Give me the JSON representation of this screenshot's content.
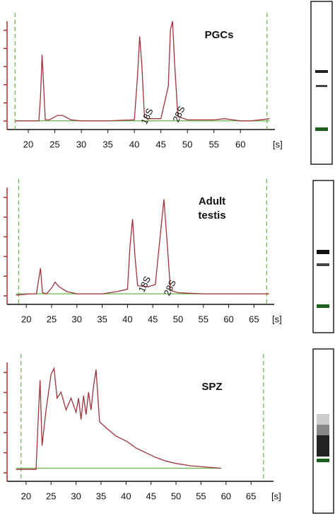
{
  "chart_data": [
    {
      "type": "line",
      "title": "PGCs",
      "x_label": "[s]",
      "xlim": [
        16,
        66.5
      ],
      "ylim": [
        0,
        100
      ],
      "xticks": [
        20,
        25,
        30,
        35,
        40,
        45,
        50,
        55,
        60
      ],
      "baseline": 8,
      "markers": [
        17.5,
        65
      ],
      "marker_color": "#6ab04c",
      "x": [
        17.5,
        20,
        22,
        22.3,
        22.6,
        22.9,
        23.2,
        24,
        25.5,
        26.5,
        28,
        30,
        35,
        40,
        40.6,
        41,
        41.4,
        41.9,
        42.5,
        45,
        46.4,
        46.8,
        47.2,
        47.6,
        48.2,
        50,
        55,
        57,
        60,
        62,
        65.5
      ],
      "series": [
        {
          "color": "#a0323c",
          "values": [
            8,
            8,
            8,
            30,
            69,
            40,
            9,
            9,
            13,
            13,
            9,
            8,
            8,
            9,
            50,
            86,
            60,
            12,
            10,
            10,
            40,
            92,
            100,
            60,
            12,
            9,
            9,
            10,
            8,
            8,
            10
          ]
        }
      ],
      "annotations": [
        {
          "text": "18S",
          "x": 42.5,
          "y": 12,
          "color": "#d24fd2"
        },
        {
          "text": "28S",
          "x": 48.5,
          "y": 14,
          "color": "#2e7d5b"
        }
      ]
    },
    {
      "type": "line",
      "title": "Adult testis",
      "x_label": "[s]",
      "xlim": [
        16.2,
        69
      ],
      "ylim": [
        0,
        100
      ],
      "xticks": [
        20,
        25,
        30,
        35,
        40,
        45,
        50,
        55,
        60,
        65
      ],
      "baseline": 9,
      "markers": [
        18.5,
        67.5
      ],
      "marker_color": "#6ab04c",
      "x": [
        18,
        21,
        22,
        22.4,
        22.8,
        23.2,
        24,
        25,
        25.7,
        26.5,
        28,
        30,
        35,
        38,
        40,
        40.5,
        41,
        41.5,
        42,
        44,
        45.5,
        46.5,
        47.2,
        47.8,
        48.5,
        50,
        55,
        60,
        65,
        68
      ],
      "series": [
        {
          "color": "#a0323c",
          "values": [
            8,
            9,
            9,
            20,
            31,
            10,
            9,
            14,
            19,
            15,
            11,
            9,
            9,
            11,
            13,
            50,
            73,
            40,
            16,
            15,
            17,
            60,
            90,
            55,
            12,
            10,
            9,
            9,
            9,
            9
          ]
        }
      ],
      "annotations": [
        {
          "text": "18S",
          "x": 43.5,
          "y": 17,
          "color": "#d24fd2"
        },
        {
          "text": "28S",
          "x": 48.5,
          "y": 14,
          "color": "#2e7d5b"
        }
      ]
    },
    {
      "type": "line",
      "title": "SPZ",
      "x_label": "[s]",
      "xlim": [
        16.2,
        69.5
      ],
      "ylim": [
        0,
        100
      ],
      "xticks": [
        20,
        25,
        30,
        35,
        40,
        45,
        50,
        55,
        60,
        65
      ],
      "baseline": 11,
      "markers": [
        19,
        67.5
      ],
      "marker_color": "#6ab04c",
      "x": [
        18,
        22,
        22.4,
        22.8,
        23.2,
        24,
        25,
        25.6,
        26.2,
        27,
        28,
        29,
        30,
        30.5,
        31,
        31.5,
        32,
        32.5,
        33,
        33.5,
        34,
        34.7,
        36,
        38,
        40,
        42,
        44,
        46,
        48,
        50,
        53,
        56,
        59
      ],
      "series": [
        {
          "color": "#a0323c",
          "values": [
            10,
            10,
            50,
            85,
            30,
            60,
            90,
            95,
            70,
            75,
            60,
            70,
            58,
            70,
            52,
            72,
            56,
            75,
            60,
            80,
            94,
            50,
            45,
            38,
            34,
            28,
            24,
            20,
            17,
            15,
            13,
            12,
            11
          ]
        }
      ]
    }
  ]
}
